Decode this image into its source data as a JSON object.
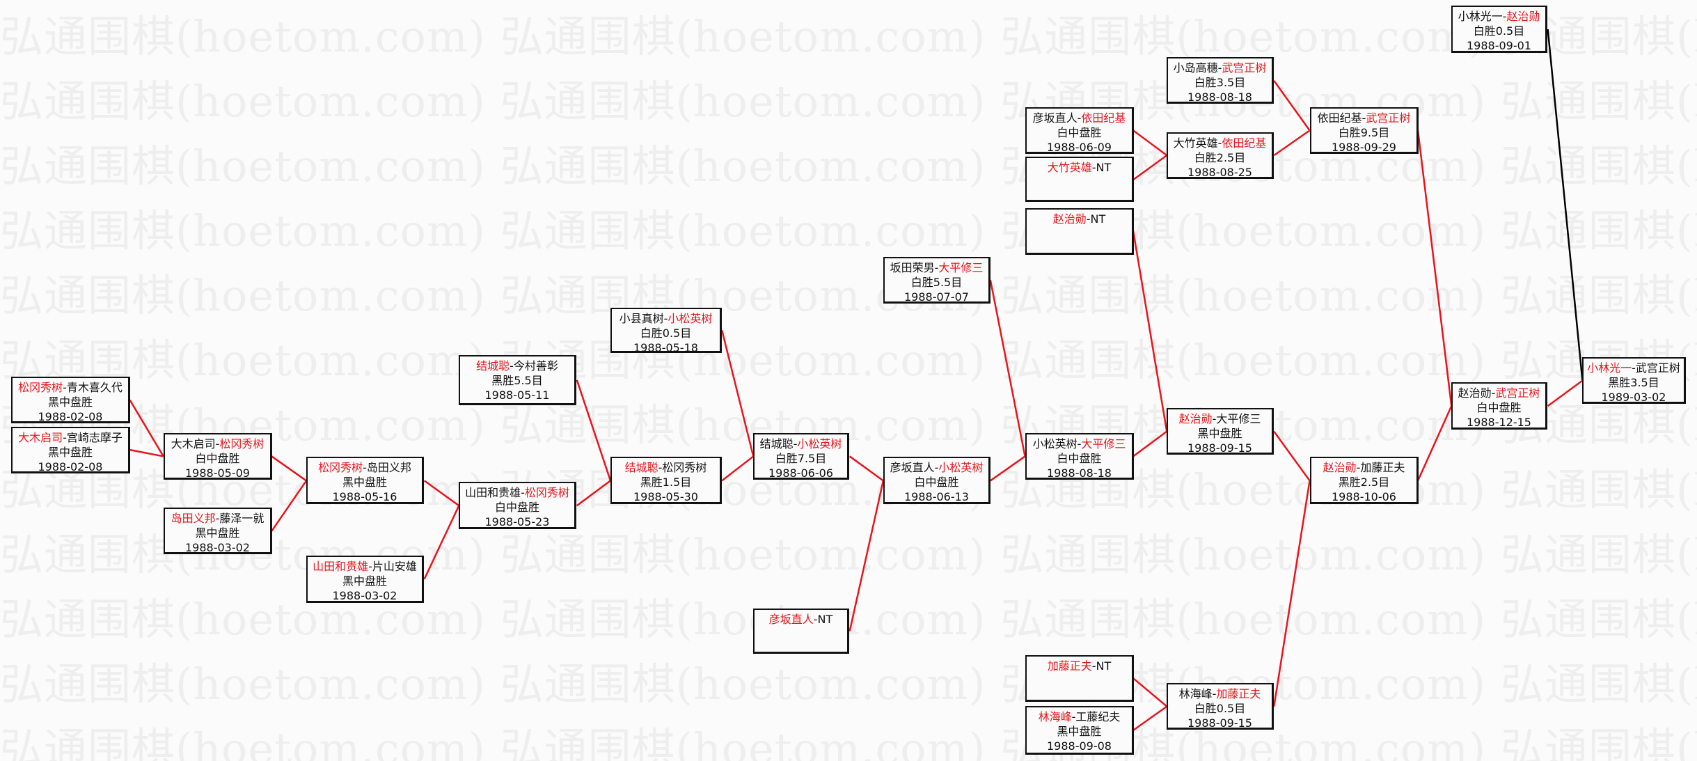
{
  "watermark": "弘通围棋(hoetom.com)",
  "separator": "-",
  "colors": {
    "winner_text": "#e8141b",
    "line_red": "#e8141b",
    "line_black": "#000000",
    "box_border": "#111111"
  },
  "matches": [
    {
      "p1": "松冈秀树",
      "p2": "青木喜久代",
      "winner": 1,
      "result": "黑中盘胜",
      "date": "1988-02-08"
    },
    {
      "p1": "大木启司",
      "p2": "宫崎志摩子",
      "winner": 1,
      "result": "黑中盘胜",
      "date": "1988-02-08"
    },
    {
      "p1": "大木启司",
      "p2": "松冈秀树",
      "winner": 2,
      "result": "白中盘胜",
      "date": "1988-05-09"
    },
    {
      "p1": "岛田义邦",
      "p2": "藤泽一就",
      "winner": 1,
      "result": "黑中盘胜",
      "date": "1988-03-02"
    },
    {
      "p1": "松冈秀树",
      "p2": "岛田义邦",
      "winner": 1,
      "result": "黑中盘胜",
      "date": "1988-05-16"
    },
    {
      "p1": "山田和贵雄",
      "p2": "片山安雄",
      "winner": 1,
      "result": "黑中盘胜",
      "date": "1988-03-02"
    },
    {
      "p1": "结城聪",
      "p2": "今村善彰",
      "winner": 1,
      "result": "黑胜5.5目",
      "date": "1988-05-11"
    },
    {
      "p1": "山田和贵雄",
      "p2": "松冈秀树",
      "winner": 2,
      "result": "白中盘胜",
      "date": "1988-05-23"
    },
    {
      "p1": "小县真树",
      "p2": "小松英树",
      "winner": 2,
      "result": "白胜0.5目",
      "date": "1988-05-18"
    },
    {
      "p1": "结城聪",
      "p2": "松冈秀树",
      "winner": 1,
      "result": "黑胜1.5目",
      "date": "1988-05-30"
    },
    {
      "p1": "结城聪",
      "p2": "小松英树",
      "winner": 2,
      "result": "白胜7.5目",
      "date": "1988-06-06"
    },
    {
      "p1": "彦坂直人",
      "p2": "NT",
      "winner": 1,
      "result": "",
      "date": ""
    },
    {
      "p1": "坂田荣男",
      "p2": "大平修三",
      "winner": 2,
      "result": "白胜5.5目",
      "date": "1988-07-07"
    },
    {
      "p1": "彦坂直人",
      "p2": "小松英树",
      "winner": 2,
      "result": "白中盘胜",
      "date": "1988-06-13"
    },
    {
      "p1": "彦坂直人",
      "p2": "依田纪基",
      "winner": 2,
      "result": "白中盘胜",
      "date": "1988-06-09"
    },
    {
      "p1": "大竹英雄",
      "p2": "NT",
      "winner": 1,
      "result": "",
      "date": ""
    },
    {
      "p1": "赵治勋",
      "p2": "NT",
      "winner": 1,
      "result": "",
      "date": ""
    },
    {
      "p1": "小松英树",
      "p2": "大平修三",
      "winner": 2,
      "result": "白中盘胜",
      "date": "1988-08-18"
    },
    {
      "p1": "加藤正夫",
      "p2": "NT",
      "winner": 1,
      "result": "",
      "date": ""
    },
    {
      "p1": "林海峰",
      "p2": "工藤纪夫",
      "winner": 1,
      "result": "黑中盘胜",
      "date": "1988-09-08"
    },
    {
      "p1": "小岛高穗",
      "p2": "武宫正树",
      "winner": 2,
      "result": "白胜3.5目",
      "date": "1988-08-18"
    },
    {
      "p1": "大竹英雄",
      "p2": "依田纪基",
      "winner": 2,
      "result": "白胜2.5目",
      "date": "1988-08-25"
    },
    {
      "p1": "赵治勋",
      "p2": "大平修三",
      "winner": 1,
      "result": "黑中盘胜",
      "date": "1988-09-15"
    },
    {
      "p1": "林海峰",
      "p2": "加藤正夫",
      "winner": 2,
      "result": "白胜0.5目",
      "date": "1988-09-15"
    },
    {
      "p1": "依田纪基",
      "p2": "武宫正树",
      "winner": 2,
      "result": "白胜9.5目",
      "date": "1988-09-29"
    },
    {
      "p1": "赵治勋",
      "p2": "加藤正夫",
      "winner": 1,
      "result": "黑胜2.5目",
      "date": "1988-10-06"
    },
    {
      "p1": "小林光一",
      "p2": "赵治勋",
      "winner": 2,
      "result": "白胜0.5目",
      "date": "1988-09-01"
    },
    {
      "p1": "赵治勋",
      "p2": "武宫正树",
      "winner": 2,
      "result": "白中盘胜",
      "date": "1988-12-15"
    },
    {
      "p1": "小林光一",
      "p2": "武宫正树",
      "winner": 1,
      "result": "黑胜3.5目",
      "date": "1989-03-02"
    }
  ]
}
